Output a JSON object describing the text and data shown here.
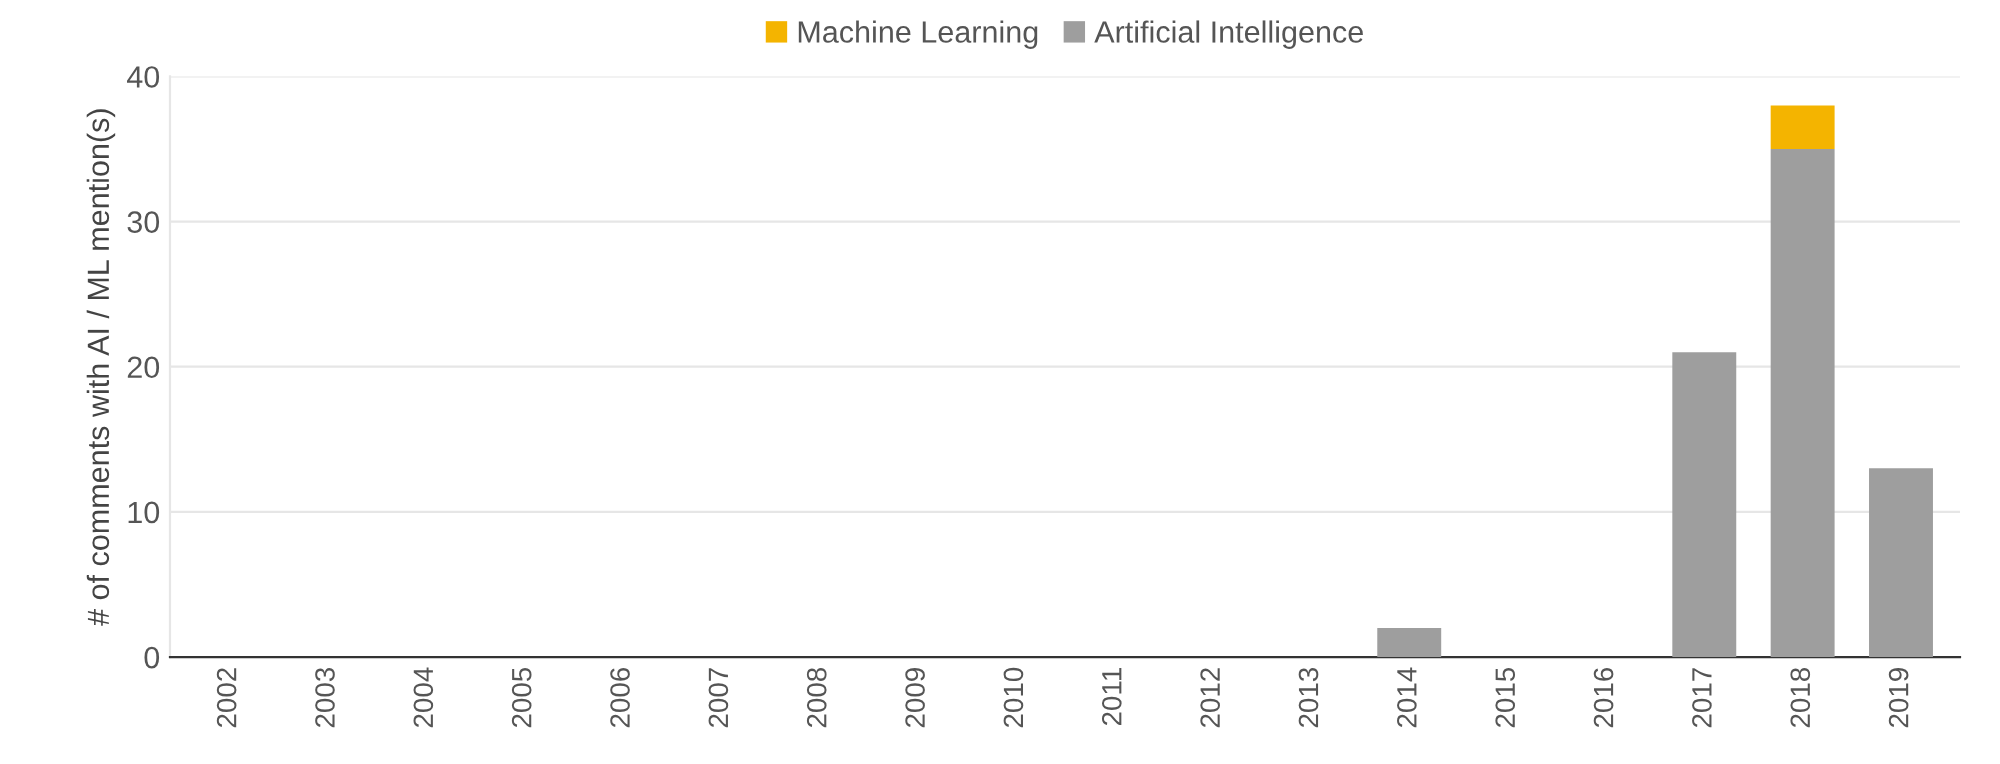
{
  "chart_data": {
    "type": "bar",
    "stacked": true,
    "ylabel": "# of comments with AI / ML mention(s)",
    "categories": [
      "2002",
      "2003",
      "2004",
      "2005",
      "2006",
      "2007",
      "2008",
      "2009",
      "2010",
      "2011",
      "2012",
      "2013",
      "2014",
      "2015",
      "2016",
      "2017",
      "2018",
      "2019"
    ],
    "series": [
      {
        "name": "Artificial Intelligence",
        "color": "#9e9e9e",
        "values": [
          0,
          0,
          0,
          0,
          0,
          0,
          0,
          0,
          0,
          0,
          0,
          0,
          2,
          0,
          0,
          21,
          35,
          13
        ]
      },
      {
        "name": "Machine Learning",
        "color": "#f4b400",
        "values": [
          0,
          0,
          0,
          0,
          0,
          0,
          0,
          0,
          0,
          0,
          0,
          0,
          0,
          0,
          0,
          0,
          3,
          0
        ]
      }
    ],
    "ylim": [
      0,
      40
    ],
    "yticks": [
      0,
      10,
      20,
      30,
      40
    ],
    "grid": "y",
    "legend": "top"
  }
}
